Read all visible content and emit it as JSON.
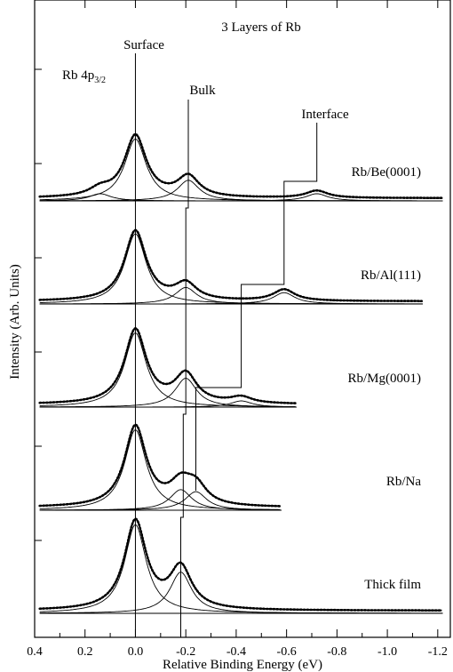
{
  "chart_data": {
    "type": "line",
    "title": "3 Layers of Rb",
    "subtitle": "Rb 4p3/2",
    "subtitle_main": "Rb 4p",
    "subtitle_sub": "3/2",
    "xlabel": "Relative Binding Energy (eV)",
    "ylabel": "Intensity (Arb. Units)",
    "x_axis_reversed": true,
    "xlim": [
      0.4,
      -1.25
    ],
    "ylim": [
      0,
      5
    ],
    "x_ticks": [
      0.4,
      0.2,
      0.0,
      -0.2,
      -0.4,
      -0.6,
      -0.8,
      -1.0,
      -1.2
    ],
    "x_tick_labels": [
      "0.4",
      "0.2",
      "0.0",
      "-0.2",
      "-0.4",
      "-0.6",
      "-0.8",
      "-1.0",
      "-1.2"
    ],
    "y_tick_labels_shown": false,
    "grid": false,
    "annotations": {
      "surface": "Surface",
      "bulk": "Bulk",
      "interface": "Interface"
    },
    "series": [
      {
        "name": "Rb/Be(0001)",
        "offset": 4,
        "surface_position": 0.0,
        "bulk_position": -0.21,
        "interface_position": -0.72,
        "peaks": [
          {
            "center": 0.0,
            "height": 0.6
          },
          {
            "center": -0.21,
            "height": 0.2
          },
          {
            "center": -0.72,
            "height": 0.07
          },
          {
            "center": 0.14,
            "height": 0.07
          }
        ],
        "x_end": -1.22
      },
      {
        "name": "Rb/Al(111)",
        "offset": 3,
        "surface_position": 0.0,
        "bulk_position": -0.2,
        "interface_position": -0.59,
        "peaks": [
          {
            "center": 0.0,
            "height": 0.68
          },
          {
            "center": -0.2,
            "height": 0.16
          },
          {
            "center": -0.59,
            "height": 0.11
          }
        ],
        "x_end": -1.14
      },
      {
        "name": "Rb/Mg(0001)",
        "offset": 2,
        "surface_position": 0.0,
        "bulk_position": -0.2,
        "interface_position": -0.42,
        "peaks": [
          {
            "center": 0.0,
            "height": 0.72
          },
          {
            "center": -0.2,
            "height": 0.28
          },
          {
            "center": -0.42,
            "height": 0.06
          }
        ],
        "x_end": -0.64
      },
      {
        "name": "Rb/Na",
        "offset": 1,
        "surface_position": 0.0,
        "bulk_position": -0.19,
        "interface_position": -0.24,
        "peaks": [
          {
            "center": 0.0,
            "height": 0.78
          },
          {
            "center": -0.18,
            "height": 0.2
          },
          {
            "center": -0.24,
            "height": 0.18
          }
        ],
        "x_end": -0.58
      },
      {
        "name": "Thick film",
        "offset": 0,
        "surface_position": 0.0,
        "bulk_position": -0.18,
        "peaks": [
          {
            "center": 0.0,
            "height": 0.86
          },
          {
            "center": -0.18,
            "height": 0.4
          }
        ],
        "x_end": -1.22
      }
    ]
  }
}
